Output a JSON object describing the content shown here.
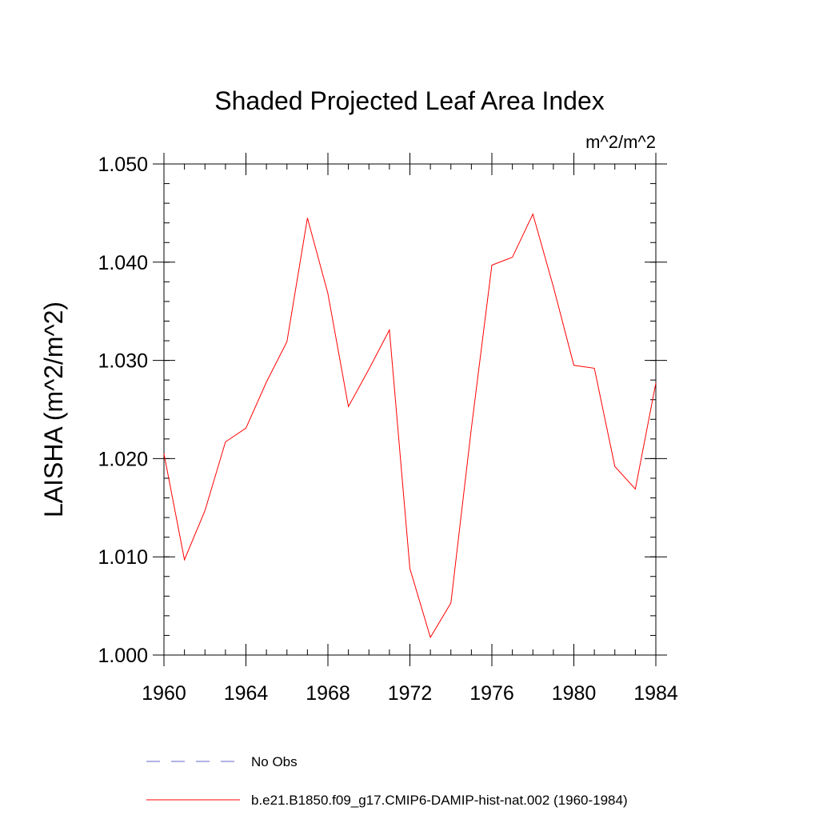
{
  "chart_data": {
    "type": "line",
    "title": "Shaded Projected Leaf Area Index",
    "units_label": "m^2/m^2",
    "ylabel": "LAISHA  (m^2/m^2)",
    "xlabel": "",
    "xlim": [
      1960,
      1984
    ],
    "ylim": [
      1.0,
      1.05
    ],
    "x_ticks": [
      1960,
      1964,
      1968,
      1972,
      1976,
      1980,
      1984
    ],
    "x_tick_labels": [
      "1960",
      "1964",
      "1968",
      "1972",
      "1976",
      "1980",
      "1984"
    ],
    "y_ticks": [
      1.0,
      1.01,
      1.02,
      1.03,
      1.04,
      1.05
    ],
    "y_tick_labels": [
      "1.000",
      "1.010",
      "1.020",
      "1.030",
      "1.040",
      "1.050"
    ],
    "grid": false,
    "legend_position": "bottom",
    "series": [
      {
        "name": "b.e21.B1850.f09_g17.CMIP6-DAMIP-hist-nat.002 (1960-1984)",
        "color": "#ff0000",
        "line_style": "solid",
        "x": [
          1960,
          1961,
          1962,
          1963,
          1964,
          1965,
          1966,
          1967,
          1968,
          1969,
          1970,
          1971,
          1972,
          1973,
          1974,
          1975,
          1976,
          1977,
          1978,
          1979,
          1980,
          1981,
          1982,
          1983,
          1984
        ],
        "values": [
          1.0205,
          1.0097,
          1.0147,
          1.0217,
          1.0231,
          1.0278,
          1.0319,
          1.0445,
          1.0368,
          1.0253,
          1.0291,
          1.0331,
          1.0088,
          1.0018,
          1.0053,
          1.0231,
          1.0397,
          1.0405,
          1.0449,
          1.0375,
          1.0295,
          1.0292,
          1.0192,
          1.0169,
          1.0277
        ]
      }
    ],
    "legend": [
      {
        "label": "No Obs",
        "color": "#6666cc",
        "line_style": "dashed"
      },
      {
        "label": "b.e21.B1850.f09_g17.CMIP6-DAMIP-hist-nat.002 (1960-1984)",
        "color": "#ff0000",
        "line_style": "solid"
      }
    ]
  }
}
